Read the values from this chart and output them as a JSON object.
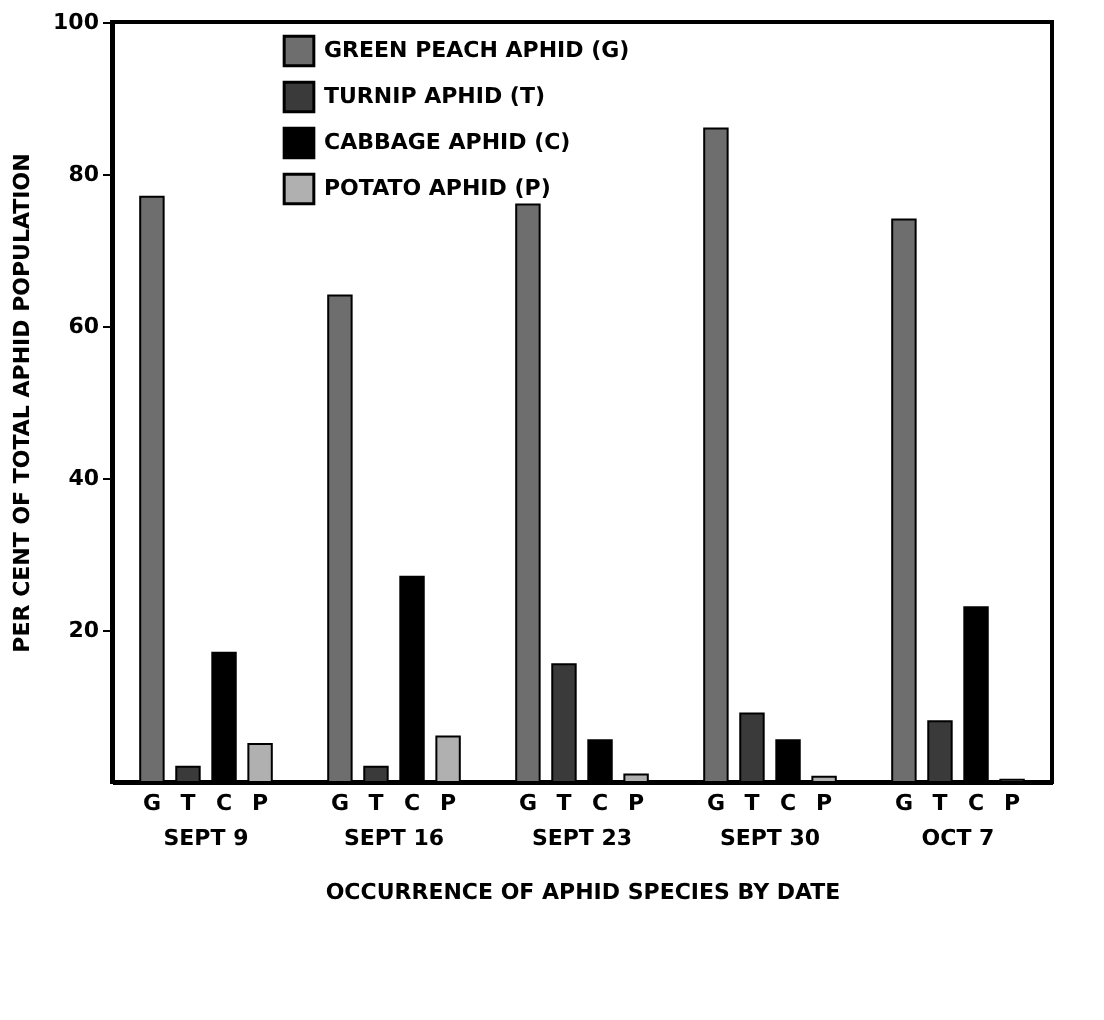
{
  "chart_data": {
    "type": "bar",
    "xlabel": "OCCURRENCE OF APHID SPECIES BY DATE",
    "ylabel": "PER CENT OF TOTAL APHID POPULATION",
    "categories": [
      "SEPT 9",
      "SEPT 16",
      "SEPT 23",
      "SEPT 30",
      "OCT 7"
    ],
    "series": [
      {
        "name": "GREEN PEACH APHID (G)",
        "color": "#6e6e6e",
        "values": [
          77,
          64,
          76,
          86,
          74
        ]
      },
      {
        "name": "TURNIP APHID (T)",
        "color": "#3a3a3a",
        "values": [
          2,
          2,
          15.5,
          9,
          8
        ]
      },
      {
        "name": "CABBAGE APHID (C)",
        "color": "#000000",
        "values": [
          17,
          27,
          5.5,
          5.5,
          23
        ]
      },
      {
        "name": "POTATO APHID (P)",
        "color": "#b0b0b0",
        "values": [
          5,
          6,
          1,
          0.7,
          0.3
        ]
      }
    ],
    "annotations": [
      "G",
      "T",
      "C",
      "P"
    ],
    "ylim": [
      0,
      100
    ],
    "yticks": [
      20,
      40,
      60,
      80,
      100
    ],
    "grid": false,
    "legend": "top left"
  }
}
